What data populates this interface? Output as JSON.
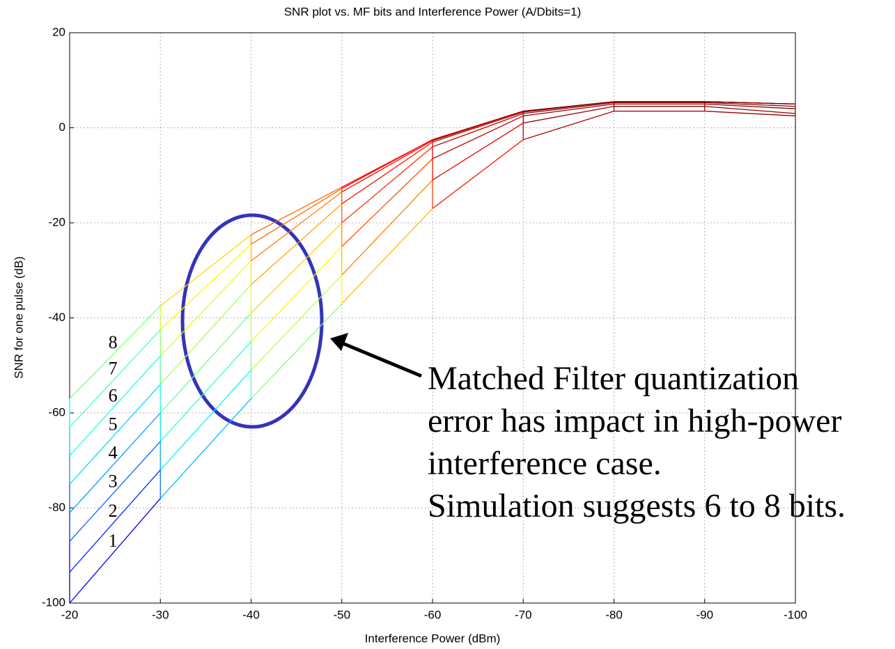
{
  "chart_data": {
    "type": "line",
    "title": "SNR plot vs. MF bits and Interference Power (A/Dbits=1)",
    "x_label": "Interference Power (dBm)",
    "y_label": "SNR for one pulse (dB)",
    "x": [
      -20,
      -30,
      -40,
      -50,
      -60,
      -70,
      -80,
      -90,
      -100
    ],
    "series": [
      {
        "name": "1",
        "values": [
          -100,
          -78,
          -57,
          -37,
          -17,
          -2.5,
          3.5,
          3.5,
          2.5
        ]
      },
      {
        "name": "2",
        "values": [
          -93.5,
          -72,
          -51,
          -31,
          -11,
          1,
          4.5,
          4.5,
          3
        ]
      },
      {
        "name": "3",
        "values": [
          -87,
          -66,
          -45,
          -25,
          -6.5,
          2.5,
          5,
          5,
          4
        ]
      },
      {
        "name": "4",
        "values": [
          -81,
          -60,
          -39,
          -20,
          -4,
          3,
          5.3,
          5.3,
          4.5
        ]
      },
      {
        "name": "5",
        "values": [
          -75,
          -54,
          -33,
          -16,
          -3,
          3.3,
          5.5,
          5.5,
          5
        ]
      },
      {
        "name": "6",
        "values": [
          -69,
          -48,
          -28,
          -13.5,
          -2.7,
          3.5,
          5.5,
          5.5,
          5
        ]
      },
      {
        "name": "7",
        "values": [
          -63,
          -42.5,
          -24.5,
          -12.8,
          -2.5,
          3.5,
          5.5,
          5.5,
          5
        ]
      },
      {
        "name": "8",
        "values": [
          -57,
          -37.5,
          -22.5,
          -12.5,
          -2.5,
          3.5,
          5.5,
          5.5,
          5
        ]
      }
    ],
    "colormap": "jet",
    "grid": true,
    "xlim": [
      -20,
      -100
    ],
    "xticks": [
      -20,
      -30,
      -40,
      -50,
      -60,
      -70,
      -80,
      -90,
      -100
    ],
    "ylim": [
      -100,
      20
    ],
    "yticks": [
      -100,
      -80,
      -60,
      -40,
      -20,
      0,
      20
    ],
    "annotation": [
      "Matched Filter quantization",
      "error has impact in high-power",
      "interference case.",
      "Simulation suggests 6 to 8 bits."
    ]
  }
}
